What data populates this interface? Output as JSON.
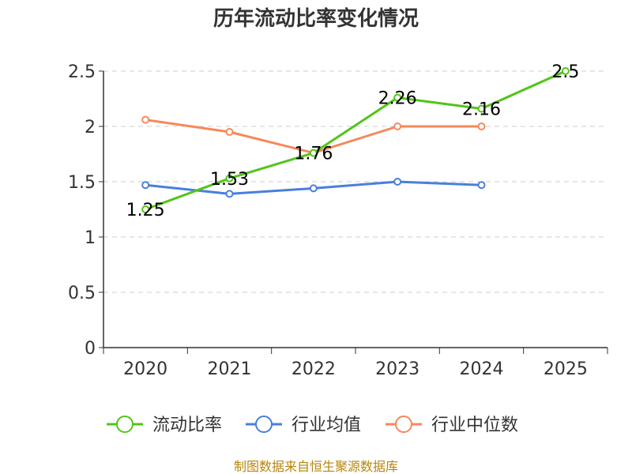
{
  "chart_data": {
    "type": "line",
    "title": "历年流动比率变化情况",
    "categories": [
      "2020",
      "2021",
      "2022",
      "2023",
      "2024",
      "2025"
    ],
    "ylim": [
      0,
      2.5
    ],
    "yticks": [
      "0",
      "0.5",
      "1",
      "1.5",
      "2",
      "2.5"
    ],
    "grid": true,
    "legend_position": "bottom",
    "series": [
      {
        "name": "流动比率",
        "color": "#52c41a",
        "values": [
          1.25,
          1.53,
          1.76,
          2.26,
          2.16,
          2.5
        ],
        "labels": [
          "1.25",
          "1.53",
          "1.76",
          "2.26",
          "2.16",
          "2.5"
        ]
      },
      {
        "name": "行业均值",
        "color": "#4a7fdc",
        "values": [
          1.47,
          1.39,
          1.44,
          1.5,
          1.47,
          null
        ]
      },
      {
        "name": "行业中位数",
        "color": "#f5895a",
        "values": [
          2.06,
          1.95,
          1.76,
          2.0,
          2.0,
          null
        ]
      }
    ],
    "source": "制图数据来自恒生聚源数据库"
  }
}
